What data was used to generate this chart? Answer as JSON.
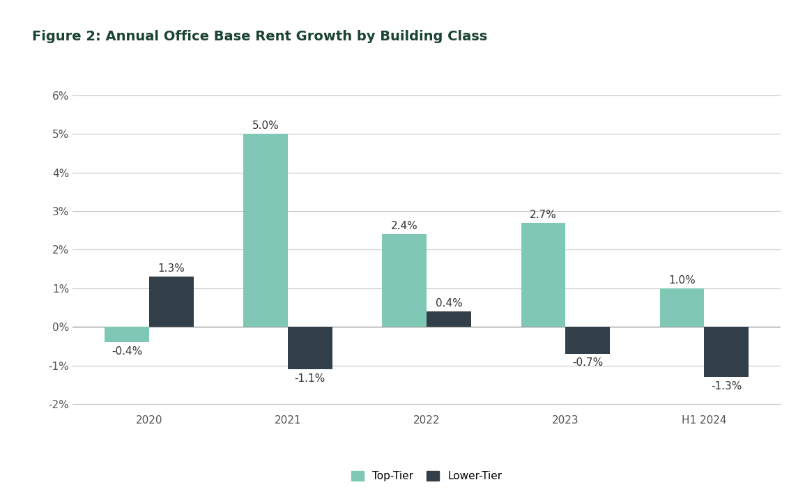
{
  "title": "Figure 2: Annual Office Base Rent Growth by Building Class",
  "categories": [
    "2020",
    "2021",
    "2022",
    "2023",
    "H1 2024"
  ],
  "top_tier": [
    -0.4,
    5.0,
    2.4,
    2.7,
    1.0
  ],
  "lower_tier": [
    1.3,
    -1.1,
    0.4,
    -0.7,
    -1.3
  ],
  "top_tier_color": "#7EC8B5",
  "lower_tier_color": "#333F48",
  "top_tier_label": "Top-Tier",
  "lower_tier_label": "Lower-Tier",
  "ylim": [
    -2.2,
    6.8
  ],
  "yticks": [
    -2,
    -1,
    0,
    1,
    2,
    3,
    4,
    5,
    6
  ],
  "ytick_labels": [
    "-2%",
    "-1%",
    "0%",
    "1%",
    "2%",
    "3%",
    "4%",
    "5%",
    "6%"
  ],
  "title_color": "#1B4332",
  "title_fontsize": 14,
  "bar_width": 0.32,
  "background_color": "#FFFFFF",
  "grid_color": "#C8C8C8",
  "axis_label_color": "#555555",
  "label_fontsize": 11,
  "annotation_fontsize": 11,
  "annotation_color": "#333333"
}
